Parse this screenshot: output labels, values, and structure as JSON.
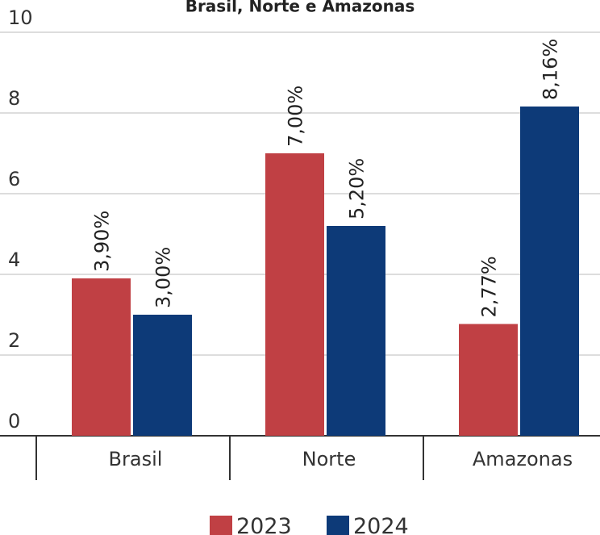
{
  "chart_data": {
    "type": "bar",
    "title": "Brasil, Norte e Amazonas",
    "categories": [
      "Brasil",
      "Norte",
      "Amazonas"
    ],
    "series": [
      {
        "name": "2023",
        "color": "#c04044",
        "values": [
          3.9,
          7.0,
          2.77
        ],
        "value_labels": [
          "3,90%",
          "7,00%",
          "2,77%"
        ]
      },
      {
        "name": "2024",
        "color": "#0d3a78",
        "values": [
          3.0,
          5.2,
          8.16
        ],
        "value_labels": [
          "3,00%",
          "5,20%",
          "8,16%"
        ]
      }
    ],
    "ylim": [
      0,
      10
    ],
    "yticks": [
      0,
      2,
      4,
      6,
      8,
      10
    ],
    "grid": true
  }
}
